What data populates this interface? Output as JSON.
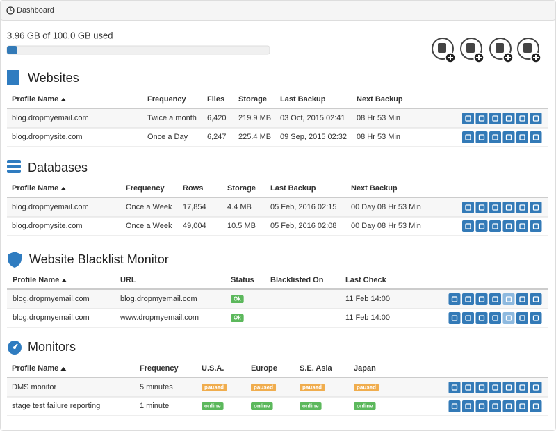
{
  "header": {
    "title": "Dashboard"
  },
  "usage": {
    "label": "3.96 GB of 100.0 GB used",
    "used": 3.96,
    "total": 100.0
  },
  "sections": [
    {
      "title": "Websites",
      "columns": [
        "Profile Name",
        "Frequency",
        "Files",
        "Storage",
        "Last Backup",
        "Next Backup"
      ],
      "rows": [
        [
          "blog.dropmyemail.com",
          "Twice a month",
          "6,420",
          "219.9 MB",
          "03 Oct, 2015 02:41",
          "08 Hr 53 Min"
        ],
        [
          "blog.dropmysite.com",
          "Once a Day",
          "6,247",
          "225.4 MB",
          "09 Sep, 2015 02:32",
          "08 Hr 53 Min"
        ]
      ]
    },
    {
      "title": "Databases",
      "columns": [
        "Profile Name",
        "Frequency",
        "Rows",
        "Storage",
        "Last Backup",
        "Next Backup"
      ],
      "rows": [
        [
          "blog.dropmyemail.com",
          "Once a Week",
          "17,854",
          "4.4 MB",
          "05 Feb, 2016 02:15",
          "00 Day 08 Hr 53 Min"
        ],
        [
          "blog.dropmysite.com",
          "Once a Week",
          "49,004",
          "10.5 MB",
          "05 Feb, 2016 02:08",
          "00 Day 08 Hr 53 Min"
        ]
      ]
    },
    {
      "title": "Website Blacklist Monitor",
      "columns": [
        "Profile Name",
        "URL",
        "Status",
        "Blacklisted On",
        "Last Check"
      ],
      "rows": [
        [
          "blog.dropmyemail.com",
          "blog.dropmyemail.com",
          "Ok",
          null,
          "11 Feb 14:00"
        ],
        [
          "blog.dropmyemail.com",
          "www.dropmyemail.com",
          "Ok",
          null,
          "11 Feb 14:00"
        ]
      ],
      "row_badge_colors": [
        "#5cb85c",
        "#5cb85c"
      ]
    },
    {
      "title": "Monitors",
      "columns": [
        "Profile Name",
        "Frequency",
        "U.S.A.",
        "Europe",
        "S.E. Asia",
        "Japan"
      ],
      "rows": [
        [
          "DMS monitor",
          "5 minutes",
          "paused",
          "paused",
          "paused",
          "paused"
        ],
        [
          "stage test failure reporting",
          "1 minute",
          "online",
          "online",
          "online",
          "online"
        ]
      ],
      "row_badge_colors": [
        "#f0ad4e",
        "#5cb85c"
      ]
    }
  ]
}
